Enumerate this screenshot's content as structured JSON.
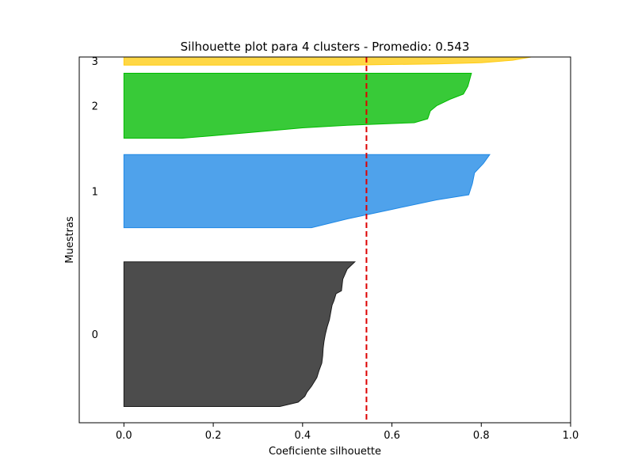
{
  "chart_data": {
    "type": "area",
    "title": "Silhouette plot para 4 clusters - Promedio: 0.543",
    "xlabel": "Coeficiente silhouette",
    "ylabel": "Muestras",
    "xlim": [
      -0.1,
      1.0
    ],
    "ylim": [
      0,
      225
    ],
    "x_ticks": [
      "0.0",
      "0.2",
      "0.4",
      "0.6",
      "0.8",
      "1.0"
    ],
    "x_tick_values": [
      0.0,
      0.2,
      0.4,
      0.6,
      0.8,
      1.0
    ],
    "y_ticks": false,
    "grid": false,
    "average_line": {
      "value": 0.543,
      "color": "#dd0000",
      "style": "dashed"
    },
    "series": [
      {
        "name": "0",
        "color": "#1a1a1a",
        "y_start": 10,
        "profile": [
          [
            0.517,
            0.0
          ],
          [
            0.5,
            0.05
          ],
          [
            0.49,
            0.12
          ],
          [
            0.487,
            0.2
          ],
          [
            0.475,
            0.22
          ],
          [
            0.47,
            0.27
          ],
          [
            0.466,
            0.3
          ],
          [
            0.463,
            0.35
          ],
          [
            0.46,
            0.4
          ],
          [
            0.455,
            0.45
          ],
          [
            0.451,
            0.5
          ],
          [
            0.448,
            0.55
          ],
          [
            0.446,
            0.6
          ],
          [
            0.445,
            0.65
          ],
          [
            0.443,
            0.7
          ],
          [
            0.437,
            0.75
          ],
          [
            0.432,
            0.8
          ],
          [
            0.42,
            0.86
          ],
          [
            0.41,
            0.9
          ],
          [
            0.405,
            0.93
          ],
          [
            0.39,
            0.97
          ],
          [
            0.349,
            1.0
          ]
        ]
      },
      {
        "name": "1",
        "color": "#1e88e5",
        "y_start": 120,
        "profile": [
          [
            0.819,
            0.0
          ],
          [
            0.805,
            0.12
          ],
          [
            0.785,
            0.25
          ],
          [
            0.78,
            0.4
          ],
          [
            0.772,
            0.55
          ],
          [
            0.7,
            0.62
          ],
          [
            0.6,
            0.75
          ],
          [
            0.5,
            0.88
          ],
          [
            0.42,
            1.0
          ]
        ]
      },
      {
        "name": "2",
        "color": "#00bb00",
        "y_start": 175,
        "profile": [
          [
            0.778,
            0.0
          ],
          [
            0.77,
            0.2
          ],
          [
            0.76,
            0.32
          ],
          [
            0.73,
            0.4
          ],
          [
            0.7,
            0.5
          ],
          [
            0.686,
            0.58
          ],
          [
            0.68,
            0.7
          ],
          [
            0.65,
            0.76
          ],
          [
            0.5,
            0.8
          ],
          [
            0.4,
            0.84
          ],
          [
            0.3,
            0.9
          ],
          [
            0.2,
            0.96
          ],
          [
            0.13,
            1.0
          ]
        ]
      },
      {
        "name": "3",
        "color": "#ffcc11",
        "y_start": 220,
        "profile": [
          [
            0.912,
            0.0
          ],
          [
            0.87,
            0.4
          ],
          [
            0.8,
            0.7
          ],
          [
            0.7,
            0.85
          ],
          [
            0.5,
            1.0
          ]
        ]
      }
    ],
    "cluster_sizes": [
      89,
      45,
      40,
      5
    ]
  }
}
